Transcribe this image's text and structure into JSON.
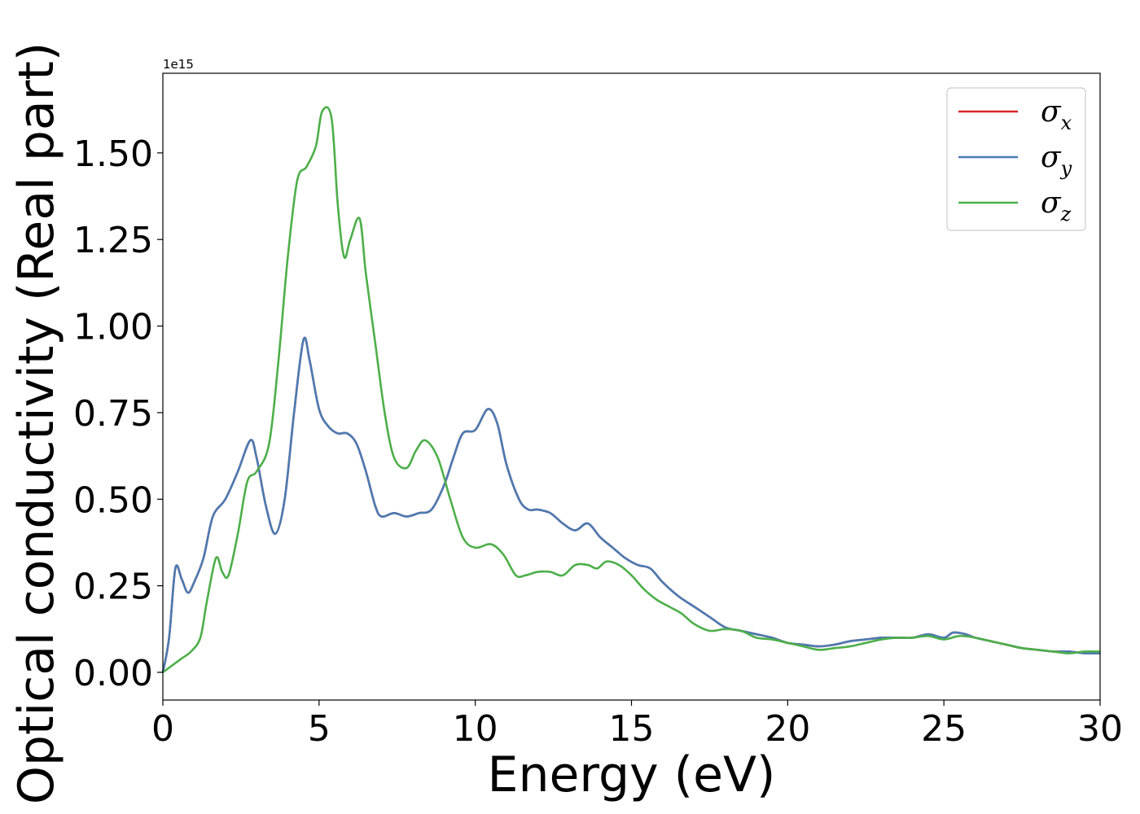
{
  "chart_data": {
    "type": "line",
    "title": "",
    "xlabel": "Energy (eV)",
    "ylabel": "Optical conductivity (Real part)",
    "y_offset_label": "1e15",
    "xlim": [
      0,
      30
    ],
    "ylim": [
      -0.08,
      1.73
    ],
    "x_ticks": [
      0,
      5,
      10,
      15,
      20,
      25,
      30
    ],
    "x_tick_labels": [
      "0",
      "5",
      "10",
      "15",
      "20",
      "25",
      "30"
    ],
    "y_ticks": [
      0.0,
      0.25,
      0.5,
      0.75,
      1.0,
      1.25,
      1.5
    ],
    "y_tick_labels": [
      "0.00",
      "0.25",
      "0.50",
      "0.75",
      "1.00",
      "1.25",
      "1.50"
    ],
    "grid": false,
    "legend_position": "top-right",
    "series": [
      {
        "name": "σx",
        "legend_symbol": "σ",
        "legend_sub": "x",
        "color": "#d62728",
        "x": [
          0,
          0.2,
          0.4,
          0.6,
          0.8,
          1.0,
          1.3,
          1.6,
          2.0,
          2.4,
          2.8,
          3.0,
          3.3,
          3.6,
          3.9,
          4.2,
          4.5,
          4.7,
          5.0,
          5.3,
          5.6,
          5.9,
          6.2,
          6.5,
          6.8,
          7.0,
          7.4,
          7.8,
          8.2,
          8.6,
          9.0,
          9.3,
          9.6,
          10.0,
          10.4,
          10.7,
          11.0,
          11.4,
          11.7,
          12.0,
          12.4,
          12.8,
          13.2,
          13.6,
          14.0,
          14.4,
          14.8,
          15.2,
          15.6,
          16.0,
          16.5,
          17.0,
          17.5,
          18.0,
          18.5,
          19.0,
          19.5,
          20.0,
          20.5,
          21.0,
          21.5,
          22.0,
          22.5,
          23.0,
          23.5,
          24.0,
          24.5,
          25.0,
          25.3,
          25.7,
          26.0,
          26.5,
          27.0,
          27.5,
          28.0,
          28.5,
          29.0,
          29.5,
          30.0
        ],
        "y": [
          0.0,
          0.1,
          0.3,
          0.27,
          0.23,
          0.26,
          0.33,
          0.45,
          0.5,
          0.58,
          0.67,
          0.62,
          0.48,
          0.4,
          0.5,
          0.75,
          0.96,
          0.9,
          0.76,
          0.71,
          0.69,
          0.69,
          0.66,
          0.58,
          0.48,
          0.45,
          0.46,
          0.45,
          0.46,
          0.47,
          0.54,
          0.62,
          0.69,
          0.7,
          0.76,
          0.72,
          0.6,
          0.5,
          0.47,
          0.47,
          0.46,
          0.43,
          0.41,
          0.43,
          0.39,
          0.36,
          0.33,
          0.31,
          0.3,
          0.26,
          0.22,
          0.19,
          0.16,
          0.13,
          0.12,
          0.11,
          0.1,
          0.085,
          0.08,
          0.075,
          0.08,
          0.09,
          0.095,
          0.1,
          0.1,
          0.1,
          0.11,
          0.1,
          0.115,
          0.11,
          0.1,
          0.09,
          0.08,
          0.07,
          0.065,
          0.06,
          0.06,
          0.055,
          0.055
        ]
      },
      {
        "name": "σy",
        "legend_symbol": "σ",
        "legend_sub": "y",
        "color": "#4a7bb3",
        "x": [
          0,
          0.2,
          0.4,
          0.6,
          0.8,
          1.0,
          1.3,
          1.6,
          2.0,
          2.4,
          2.8,
          3.0,
          3.3,
          3.6,
          3.9,
          4.2,
          4.5,
          4.7,
          5.0,
          5.3,
          5.6,
          5.9,
          6.2,
          6.5,
          6.8,
          7.0,
          7.4,
          7.8,
          8.2,
          8.6,
          9.0,
          9.3,
          9.6,
          10.0,
          10.4,
          10.7,
          11.0,
          11.4,
          11.7,
          12.0,
          12.4,
          12.8,
          13.2,
          13.6,
          14.0,
          14.4,
          14.8,
          15.2,
          15.6,
          16.0,
          16.5,
          17.0,
          17.5,
          18.0,
          18.5,
          19.0,
          19.5,
          20.0,
          20.5,
          21.0,
          21.5,
          22.0,
          22.5,
          23.0,
          23.5,
          24.0,
          24.5,
          25.0,
          25.3,
          25.7,
          26.0,
          26.5,
          27.0,
          27.5,
          28.0,
          28.5,
          29.0,
          29.5,
          30.0
        ],
        "y": [
          0.0,
          0.1,
          0.3,
          0.27,
          0.23,
          0.26,
          0.33,
          0.45,
          0.5,
          0.58,
          0.67,
          0.62,
          0.48,
          0.4,
          0.5,
          0.75,
          0.96,
          0.9,
          0.76,
          0.71,
          0.69,
          0.69,
          0.66,
          0.58,
          0.48,
          0.45,
          0.46,
          0.45,
          0.46,
          0.47,
          0.54,
          0.62,
          0.69,
          0.7,
          0.76,
          0.72,
          0.6,
          0.5,
          0.47,
          0.47,
          0.46,
          0.43,
          0.41,
          0.43,
          0.39,
          0.36,
          0.33,
          0.31,
          0.3,
          0.26,
          0.22,
          0.19,
          0.16,
          0.13,
          0.12,
          0.11,
          0.1,
          0.085,
          0.08,
          0.075,
          0.08,
          0.09,
          0.095,
          0.1,
          0.1,
          0.1,
          0.11,
          0.1,
          0.115,
          0.11,
          0.1,
          0.09,
          0.08,
          0.07,
          0.065,
          0.06,
          0.06,
          0.055,
          0.055
        ]
      },
      {
        "name": "σz",
        "legend_symbol": "σ",
        "legend_sub": "z",
        "color": "#4daf4a",
        "x": [
          0,
          0.3,
          0.6,
          0.9,
          1.2,
          1.4,
          1.7,
          1.9,
          2.1,
          2.4,
          2.7,
          3.0,
          3.4,
          3.7,
          4.0,
          4.3,
          4.6,
          4.9,
          5.1,
          5.4,
          5.6,
          5.8,
          6.0,
          6.3,
          6.5,
          6.8,
          7.1,
          7.4,
          7.8,
          8.1,
          8.4,
          8.8,
          9.2,
          9.6,
          10.0,
          10.5,
          10.9,
          11.3,
          11.6,
          12.0,
          12.4,
          12.8,
          13.2,
          13.6,
          13.9,
          14.2,
          14.6,
          15.0,
          15.4,
          15.8,
          16.2,
          16.6,
          17.0,
          17.5,
          18.0,
          18.5,
          19.0,
          19.5,
          20.0,
          20.5,
          21.0,
          21.5,
          22.0,
          22.5,
          23.0,
          23.5,
          24.0,
          24.5,
          25.0,
          25.5,
          26.0,
          26.5,
          27.0,
          27.5,
          28.0,
          28.5,
          29.0,
          29.5,
          30.0
        ],
        "y": [
          0.0,
          0.02,
          0.04,
          0.06,
          0.1,
          0.2,
          0.33,
          0.29,
          0.28,
          0.4,
          0.55,
          0.58,
          0.66,
          0.9,
          1.2,
          1.42,
          1.46,
          1.52,
          1.62,
          1.6,
          1.35,
          1.2,
          1.25,
          1.31,
          1.15,
          0.95,
          0.75,
          0.62,
          0.59,
          0.64,
          0.67,
          0.62,
          0.5,
          0.39,
          0.36,
          0.37,
          0.34,
          0.28,
          0.28,
          0.29,
          0.29,
          0.28,
          0.31,
          0.31,
          0.3,
          0.32,
          0.31,
          0.28,
          0.24,
          0.21,
          0.19,
          0.17,
          0.14,
          0.12,
          0.125,
          0.12,
          0.1,
          0.095,
          0.085,
          0.075,
          0.065,
          0.07,
          0.075,
          0.085,
          0.095,
          0.1,
          0.1,
          0.105,
          0.095,
          0.105,
          0.1,
          0.09,
          0.08,
          0.07,
          0.065,
          0.06,
          0.055,
          0.06,
          0.06
        ]
      }
    ]
  }
}
